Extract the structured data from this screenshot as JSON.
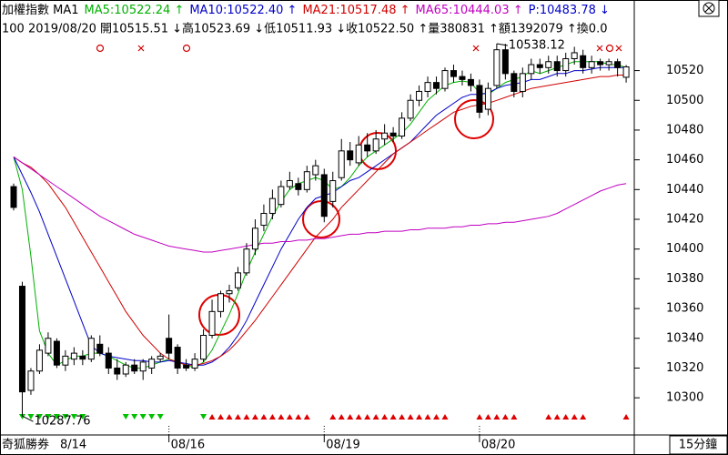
{
  "chart_data": {
    "type": "candlestick",
    "header": {
      "name": "加權指數 MA1",
      "indicators": [
        {
          "text": "MA5:10522.24 ↑",
          "color": "#00b000"
        },
        {
          "text": "MA10:10522.40 ↑",
          "color": "#0000c8"
        },
        {
          "text": "MA21:10517.48 ↑",
          "color": "#d00000"
        },
        {
          "text": "MA65:10444.03 ↑",
          "color": "#c000c0"
        },
        {
          "text": "P:10483.78 ↓",
          "color": "#0000c8"
        }
      ],
      "info": "100 2019/08/20 開10515.51 ↓高10523.69 ↓低10511.93 ↓收10522.50 ↑量380831 ↑額1392079 ↑換0.0"
    },
    "brand": "奇狐勝券",
    "period": "15分鐘",
    "x_labels": [
      {
        "label": "8/14",
        "index": 0
      },
      {
        "label": "08/16",
        "index": 18
      },
      {
        "label": "08/19",
        "index": 36
      },
      {
        "label": "08/20",
        "index": 54
      }
    ],
    "annotations": [
      {
        "text": "10538.12",
        "index": 56,
        "value": 10538.12
      },
      {
        "text": "10287.76",
        "index": 1,
        "value": 10287.76
      }
    ],
    "ylim": [
      10275,
      10554
    ],
    "yticks": [
      10300,
      10320,
      10340,
      10360,
      10380,
      10400,
      10420,
      10440,
      10460,
      10480,
      10500,
      10520
    ],
    "up_color": "#ffffff",
    "down_color": "#000000",
    "open": [
      10442,
      10375,
      10305,
      10318,
      10330,
      10338,
      10322,
      10326,
      10328,
      10326,
      10336,
      10330,
      10320,
      10316,
      10322,
      10318,
      10320,
      10326,
      10340,
      10334,
      10322,
      10320,
      10326,
      10342,
      10358,
      10370,
      10374,
      10384,
      10400,
      10416,
      10424,
      10430,
      10442,
      10444,
      10440,
      10450,
      10450,
      10432,
      10448,
      10466,
      10458,
      10470,
      10466,
      10474,
      10478,
      10476,
      10488,
      10500,
      10506,
      10512,
      10508,
      10520,
      10516,
      10514,
      10510,
      10494,
      10510,
      10534,
      10518,
      10506,
      10518,
      10524,
      10522,
      10526,
      10520,
      10528,
      10530,
      10522,
      10526,
      10524,
      10526,
      10515.51
    ],
    "close": [
      10428,
      10304,
      10318,
      10332,
      10340,
      10322,
      10328,
      10330,
      10326,
      10340,
      10330,
      10320,
      10316,
      10322,
      10318,
      10324,
      10326,
      10328,
      10330,
      10320,
      10320,
      10326,
      10342,
      10358,
      10370,
      10372,
      10384,
      10400,
      10414,
      10424,
      10434,
      10442,
      10446,
      10440,
      10452,
      10456,
      10422,
      10446,
      10466,
      10460,
      10470,
      10466,
      10474,
      10478,
      10476,
      10488,
      10500,
      10506,
      10512,
      10508,
      10520,
      10516,
      10514,
      10510,
      10492,
      10508,
      10534,
      10518,
      10506,
      10518,
      10524,
      10522,
      10526,
      10520,
      10528,
      10532,
      10522,
      10526,
      10524,
      10526,
      10522,
      10522.5
    ],
    "high": [
      10444,
      10378,
      10320,
      10336,
      10344,
      10340,
      10332,
      10334,
      10332,
      10342,
      10342,
      10334,
      10326,
      10324,
      10326,
      10326,
      10328,
      10330,
      10356,
      10336,
      10326,
      10330,
      10346,
      10366,
      10372,
      10376,
      10388,
      10404,
      10420,
      10430,
      10440,
      10446,
      10452,
      10448,
      10456,
      10460,
      10454,
      10452,
      10474,
      10472,
      10476,
      10478,
      10480,
      10484,
      10482,
      10492,
      10504,
      10510,
      10516,
      10516,
      10522,
      10524,
      10520,
      10518,
      10514,
      10512,
      10538.12,
      10538,
      10520,
      10522,
      10528,
      10528,
      10530,
      10530,
      10532,
      10536,
      10534,
      10530,
      10528,
      10528,
      10528,
      10523.69
    ],
    "low": [
      10426,
      10287.76,
      10302,
      10316,
      10328,
      10320,
      10318,
      10322,
      10322,
      10324,
      10328,
      10316,
      10312,
      10314,
      10316,
      10312,
      10316,
      10324,
      10326,
      10316,
      10318,
      10318,
      10324,
      10340,
      10354,
      10364,
      10372,
      10382,
      10396,
      10412,
      10420,
      10428,
      10440,
      10436,
      10438,
      10446,
      10418,
      10428,
      10446,
      10456,
      10456,
      10462,
      10464,
      10470,
      10472,
      10474,
      10486,
      10496,
      10502,
      10504,
      10506,
      10512,
      10510,
      10506,
      10488,
      10490,
      10508,
      10514,
      10502,
      10502,
      10514,
      10518,
      10518,
      10516,
      10516,
      10524,
      10518,
      10518,
      10520,
      10520,
      10516,
      10511.93
    ],
    "series": [
      {
        "name": "MA5",
        "color": "#00b000",
        "values": [
          10462,
          10440,
          10395,
          10345,
          10330,
          10322,
          10325,
          10328,
          10328,
          10330,
          10330,
          10328,
          10325,
          10322,
          10320,
          10320,
          10322,
          10324,
          10326,
          10324,
          10322,
          10320,
          10324,
          10332,
          10344,
          10356,
          10370,
          10385,
          10398,
          10410,
          10422,
          10432,
          10440,
          10444,
          10446,
          10448,
          10446,
          10440,
          10442,
          10448,
          10456,
          10462,
          10466,
          10470,
          10474,
          10478,
          10484,
          10492,
          10500,
          10505,
          10510,
          10512,
          10513,
          10512,
          10505,
          10504,
          10508,
          10512,
          10514,
          10516,
          10520,
          10518,
          10520,
          10522,
          10524,
          10526,
          10526,
          10526,
          10526,
          10524,
          10524,
          10522
        ]
      },
      {
        "name": "MA10",
        "color": "#0000c8",
        "values": [
          10462,
          10450,
          10438,
          10425,
          10410,
          10395,
          10380,
          10365,
          10350,
          10335,
          10330,
          10328,
          10327,
          10326,
          10325,
          10325,
          10324,
          10324,
          10325,
          10324,
          10323,
          10322,
          10322,
          10324,
          10328,
          10334,
          10342,
          10352,
          10364,
          10376,
          10388,
          10400,
          10410,
          10420,
          10428,
          10434,
          10436,
          10438,
          10442,
          10446,
          10448,
          10452,
          10456,
          10460,
          10464,
          10468,
          10472,
          10478,
          10484,
          10490,
          10494,
          10498,
          10502,
          10504,
          10504,
          10505,
          10508,
          10510,
          10511,
          10512,
          10514,
          10514,
          10516,
          10518,
          10518,
          10520,
          10520,
          10521,
          10522,
          10522,
          10522,
          10522
        ]
      },
      {
        "name": "MA21",
        "color": "#d00000",
        "values": [
          10462,
          10458,
          10455,
          10450,
          10444,
          10436,
          10428,
          10418,
          10408,
          10398,
          10388,
          10378,
          10368,
          10358,
          10350,
          10342,
          10336,
          10330,
          10326,
          10324,
          10322,
          10322,
          10323,
          10325,
          10328,
          10332,
          10338,
          10345,
          10352,
          10360,
          10368,
          10376,
          10384,
          10392,
          10400,
          10408,
          10414,
          10420,
          10428,
          10434,
          10440,
          10446,
          10452,
          10458,
          10464,
          10468,
          10472,
          10476,
          10480,
          10484,
          10488,
          10492,
          10494,
          10496,
          10497,
          10498,
          10500,
          10502,
          10504,
          10506,
          10508,
          10509,
          10510,
          10511,
          10512,
          10513,
          10514,
          10515,
          10516,
          10516,
          10517,
          10517
        ]
      },
      {
        "name": "MA65",
        "color": "#c000c0",
        "values": [
          10462,
          10458,
          10454,
          10450,
          10446,
          10442,
          10438,
          10434,
          10430,
          10426,
          10422,
          10419,
          10416,
          10413,
          10410,
          10408,
          10406,
          10404,
          10402,
          10401,
          10400,
          10399,
          10398,
          10398,
          10399,
          10400,
          10401,
          10402,
          10403,
          10404,
          10404,
          10405,
          10405,
          10406,
          10406,
          10407,
          10407,
          10408,
          10409,
          10410,
          10410,
          10411,
          10411,
          10412,
          10412,
          10412,
          10413,
          10413,
          10414,
          10414,
          10414,
          10415,
          10415,
          10416,
          10416,
          10417,
          10417,
          10418,
          10418,
          10419,
          10420,
          10421,
          10422,
          10424,
          10427,
          10430,
          10433,
          10436,
          10439,
          10441,
          10443,
          10444
        ]
      }
    ]
  }
}
